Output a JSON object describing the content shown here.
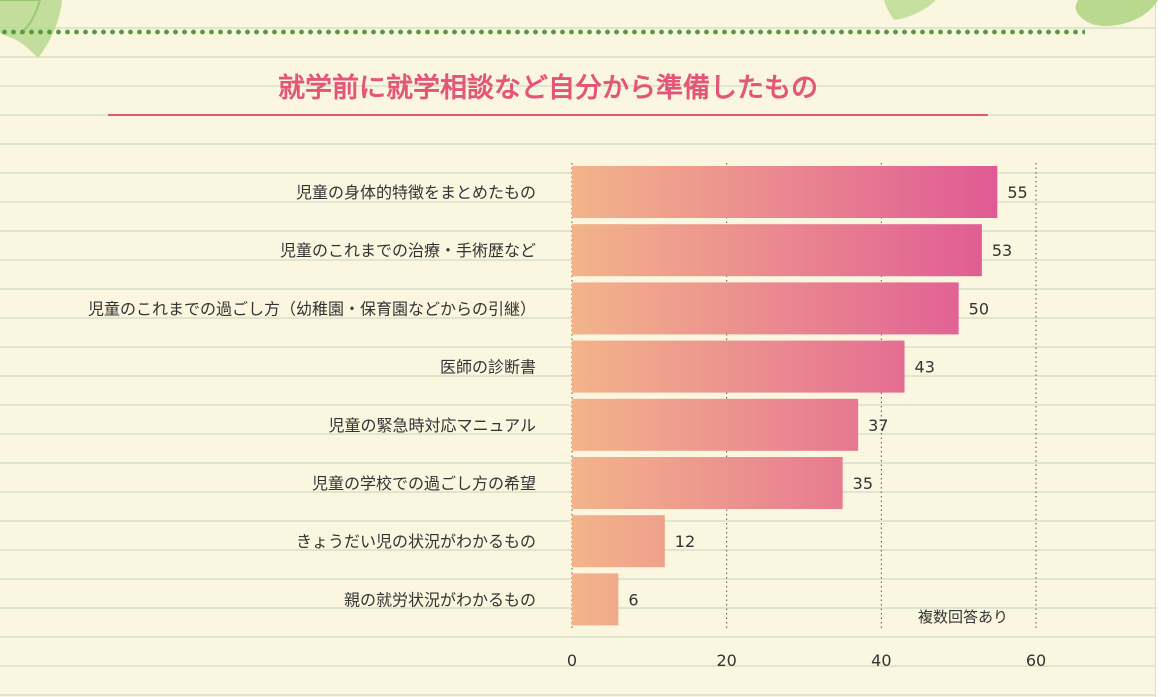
{
  "chart_data": {
    "type": "bar",
    "orientation": "horizontal",
    "title": "就学前に就学相談など自分から準備したもの",
    "categories": [
      "児童の身体的特徴をまとめたもの",
      "児童のこれまでの治療・手術歴など",
      "児童のこれまでの過ごし方（幼稚園・保育園などからの引継）",
      "医師の診断書",
      "児童の緊急時対応マニュアル",
      "児童の学校での過ごし方の希望",
      "きょうだい児の状況がわかるもの",
      "親の就労状況がわかるもの"
    ],
    "values": [
      55,
      53,
      50,
      43,
      37,
      35,
      12,
      6
    ],
    "xlim": [
      0,
      60
    ],
    "xticks": [
      0,
      20,
      40,
      60
    ],
    "grid": "vertical dotted",
    "note": "複数回答あり",
    "colors": {
      "bar_start": "#f3b48a",
      "bar_end": "#e05a95",
      "title": "#e45678"
    }
  }
}
